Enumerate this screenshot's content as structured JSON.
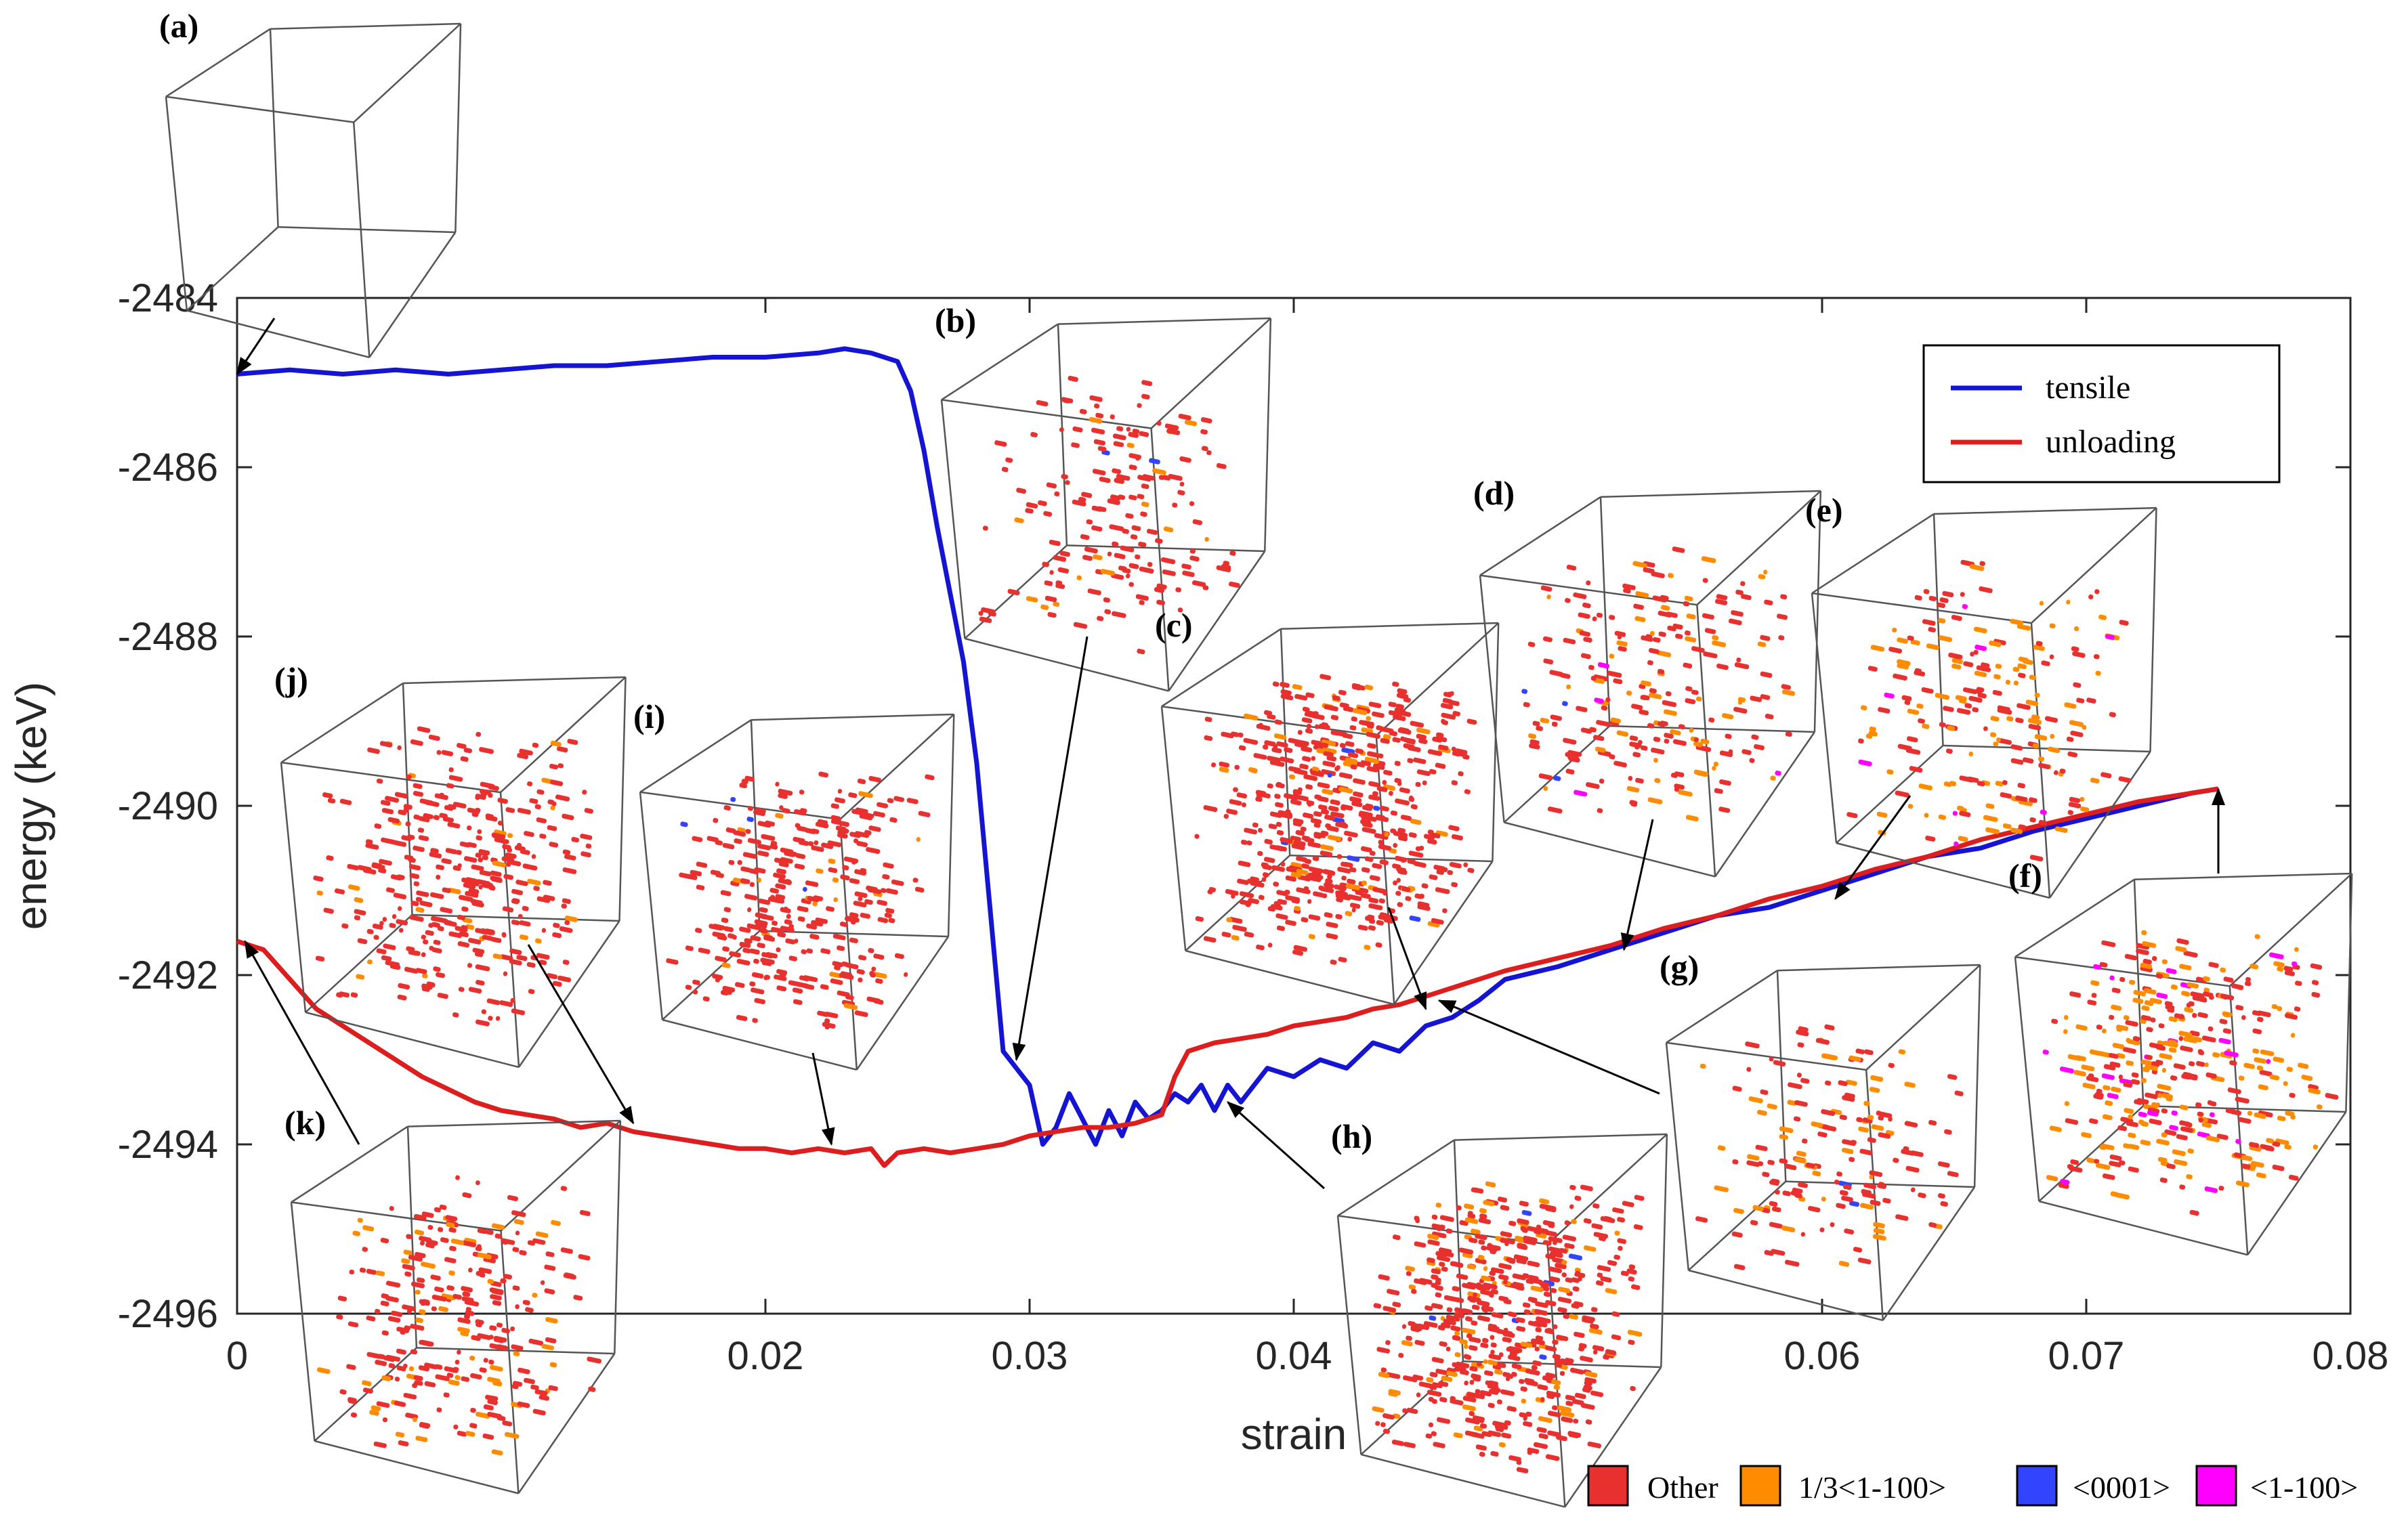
{
  "chart_data": {
    "type": "line",
    "title": "",
    "xlabel": "strain",
    "ylabel": "energy (keV)",
    "xlim": [
      0,
      0.08
    ],
    "ylim": [
      -2496,
      -2484
    ],
    "xticks": [
      0,
      0.02,
      0.03,
      0.04,
      0.06,
      0.07,
      0.08
    ],
    "xtick_labels": [
      "0",
      "0.02",
      "0.03",
      "0.04",
      "0.06",
      "0.07",
      "0.08"
    ],
    "yticks": [
      -2496,
      -2494,
      -2492,
      -2490,
      -2488,
      -2486,
      -2484
    ],
    "ytick_labels": [
      "-2496",
      "-2494",
      "-2492",
      "-2490",
      "-2488",
      "-2486",
      "-2484"
    ],
    "grid": false,
    "legend_position": "top-right",
    "series": [
      {
        "name": "tensile",
        "color": "#1414d2",
        "x": [
          0,
          0.002,
          0.004,
          0.006,
          0.008,
          0.01,
          0.012,
          0.014,
          0.016,
          0.018,
          0.02,
          0.022,
          0.023,
          0.024,
          0.025,
          0.0255,
          0.026,
          0.0265,
          0.027,
          0.0275,
          0.028,
          0.0285,
          0.029,
          0.0295,
          0.03,
          0.0305,
          0.031,
          0.0315,
          0.032,
          0.0325,
          0.033,
          0.0335,
          0.034,
          0.0345,
          0.035,
          0.0355,
          0.036,
          0.0365,
          0.037,
          0.0375,
          0.038,
          0.039,
          0.04,
          0.041,
          0.042,
          0.043,
          0.044,
          0.045,
          0.046,
          0.047,
          0.048,
          0.05,
          0.052,
          0.054,
          0.056,
          0.058,
          0.06,
          0.062,
          0.064,
          0.066,
          0.068,
          0.07,
          0.072,
          0.074,
          0.075
        ],
        "y": [
          -2484.9,
          -2484.85,
          -2484.9,
          -2484.85,
          -2484.9,
          -2484.85,
          -2484.8,
          -2484.8,
          -2484.75,
          -2484.7,
          -2484.7,
          -2484.65,
          -2484.6,
          -2484.65,
          -2484.75,
          -2485.1,
          -2485.8,
          -2486.7,
          -2487.5,
          -2488.3,
          -2489.5,
          -2491.2,
          -2492.9,
          -2493.1,
          -2493.3,
          -2494.0,
          -2493.8,
          -2493.4,
          -2493.7,
          -2494.0,
          -2493.6,
          -2493.9,
          -2493.5,
          -2493.7,
          -2493.6,
          -2493.4,
          -2493.5,
          -2493.3,
          -2493.6,
          -2493.3,
          -2493.5,
          -2493.1,
          -2493.2,
          -2493.0,
          -2493.1,
          -2492.8,
          -2492.9,
          -2492.6,
          -2492.5,
          -2492.3,
          -2492.05,
          -2491.9,
          -2491.7,
          -2491.5,
          -2491.3,
          -2491.2,
          -2491.0,
          -2490.8,
          -2490.6,
          -2490.5,
          -2490.3,
          -2490.15,
          -2490.0,
          -2489.85,
          -2489.8
        ]
      },
      {
        "name": "unloading",
        "color": "#dc1e1e",
        "x": [
          0,
          0.001,
          0.002,
          0.003,
          0.004,
          0.005,
          0.006,
          0.007,
          0.008,
          0.009,
          0.01,
          0.011,
          0.012,
          0.013,
          0.014,
          0.015,
          0.016,
          0.017,
          0.018,
          0.019,
          0.02,
          0.021,
          0.022,
          0.023,
          0.024,
          0.0245,
          0.025,
          0.026,
          0.027,
          0.028,
          0.029,
          0.03,
          0.031,
          0.032,
          0.033,
          0.034,
          0.0345,
          0.035,
          0.0355,
          0.036,
          0.037,
          0.038,
          0.039,
          0.04,
          0.041,
          0.042,
          0.043,
          0.044,
          0.045,
          0.046,
          0.047,
          0.048,
          0.05,
          0.052,
          0.054,
          0.056,
          0.058,
          0.06,
          0.062,
          0.064,
          0.066,
          0.068,
          0.07,
          0.072,
          0.074,
          0.075
        ],
        "y": [
          -2491.6,
          -2491.7,
          -2492.05,
          -2492.4,
          -2492.6,
          -2492.8,
          -2493.0,
          -2493.2,
          -2493.35,
          -2493.5,
          -2493.6,
          -2493.65,
          -2493.7,
          -2493.8,
          -2493.75,
          -2493.85,
          -2493.9,
          -2493.95,
          -2494.0,
          -2494.05,
          -2494.05,
          -2494.1,
          -2494.05,
          -2494.1,
          -2494.05,
          -2494.25,
          -2494.1,
          -2494.05,
          -2494.1,
          -2494.05,
          -2494.0,
          -2493.9,
          -2493.85,
          -2493.8,
          -2493.8,
          -2493.75,
          -2493.7,
          -2493.65,
          -2493.2,
          -2492.9,
          -2492.8,
          -2492.75,
          -2492.7,
          -2492.6,
          -2492.55,
          -2492.5,
          -2492.4,
          -2492.35,
          -2492.25,
          -2492.15,
          -2492.05,
          -2491.95,
          -2491.8,
          -2491.65,
          -2491.45,
          -2491.3,
          -2491.1,
          -2490.95,
          -2490.75,
          -2490.6,
          -2490.4,
          -2490.25,
          -2490.1,
          -2489.95,
          -2489.85,
          -2489.8
        ]
      }
    ],
    "annotations": [
      {
        "label": "(a)",
        "x": 0.0,
        "y": -2484.9
      },
      {
        "label": "(b)",
        "x": 0.0295,
        "y": -2493.0
      },
      {
        "label": "(c)",
        "x": 0.045,
        "y": -2492.4
      },
      {
        "label": "(d)",
        "x": 0.0525,
        "y": -2491.7
      },
      {
        "label": "(e)",
        "x": 0.0605,
        "y": -2491.1
      },
      {
        "label": "(f)",
        "x": 0.075,
        "y": -2489.8
      },
      {
        "label": "(g)",
        "x": 0.0455,
        "y": -2492.3
      },
      {
        "label": "(h)",
        "x": 0.0375,
        "y": -2493.5
      },
      {
        "label": "(i)",
        "x": 0.0225,
        "y": -2494.0
      },
      {
        "label": "(j)",
        "x": 0.015,
        "y": -2493.75
      },
      {
        "label": "(k)",
        "x": 0.0003,
        "y": -2491.6
      }
    ]
  },
  "structure_legend": {
    "items": [
      {
        "label": "Other",
        "color": "#e8312f"
      },
      {
        "label": "1/3<1-100>",
        "color": "#ff8c00"
      },
      {
        "label": "<0001>",
        "color": "#3344ff"
      },
      {
        "label": "<1-100>",
        "color": "#ff00ff"
      }
    ]
  }
}
